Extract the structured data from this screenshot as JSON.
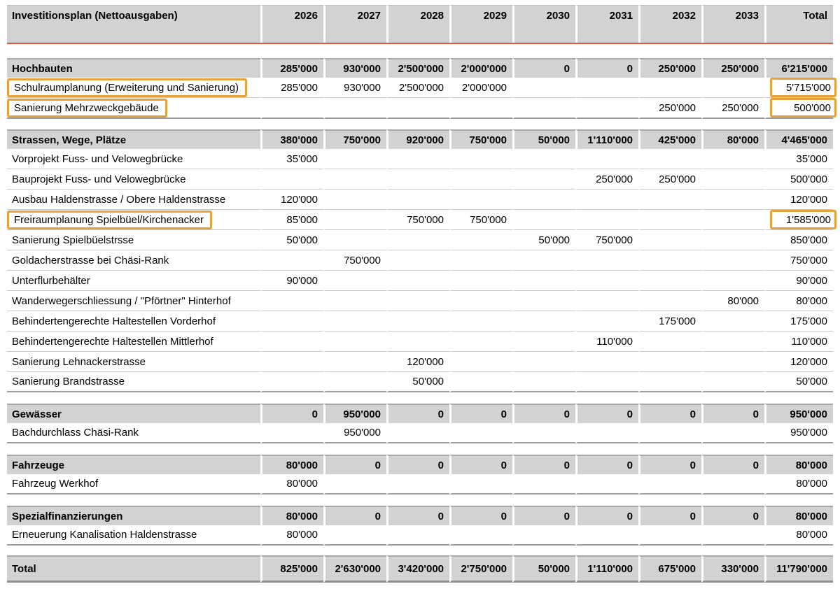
{
  "header": {
    "title": "Investitionsplan (Nettoausgaben)",
    "columns": [
      "2026",
      "2027",
      "2028",
      "2029",
      "2030",
      "2031",
      "2032",
      "2033",
      "Total"
    ]
  },
  "colors": {
    "header_rule_red": "#e8533f",
    "section_fill_gray": "#d2d2d2",
    "annotation_orange": "#e8a23c"
  },
  "sections": [
    {
      "name": "Hochbauten",
      "values": [
        "285'000",
        "930'000",
        "2'500'000",
        "2'000'000",
        "0",
        "0",
        "250'000",
        "250'000",
        "6'215'000"
      ],
      "rows": [
        {
          "label": "Schulraumplanung (Erweiterung und Sanierung)",
          "highlight_label": true,
          "highlight_total": true,
          "values": [
            "285'000",
            "930'000",
            "2'500'000",
            "2'000'000",
            "",
            "",
            "",
            "",
            "5'715'000"
          ]
        },
        {
          "label": "Sanierung Mehrzweckgebäude",
          "highlight_label": true,
          "highlight_total": true,
          "values": [
            "",
            "",
            "",
            "",
            "",
            "",
            "250'000",
            "250'000",
            "500'000"
          ]
        }
      ]
    },
    {
      "name": "Strassen, Wege, Plätze",
      "values": [
        "380'000",
        "750'000",
        "920'000",
        "750'000",
        "50'000",
        "1'110'000",
        "425'000",
        "80'000",
        "4'465'000"
      ],
      "rows": [
        {
          "label": "Vorprojekt Fuss- und Velowegbrücke",
          "values": [
            "35'000",
            "",
            "",
            "",
            "",
            "",
            "",
            "",
            "35'000"
          ]
        },
        {
          "label": "Bauprojekt Fuss- und Velowegbrücke",
          "values": [
            "",
            "",
            "",
            "",
            "",
            "250'000",
            "250'000",
            "",
            "500'000"
          ]
        },
        {
          "label": "Ausbau Haldenstrasse / Obere Haldenstrasse",
          "values": [
            "120'000",
            "",
            "",
            "",
            "",
            "",
            "",
            "",
            "120'000"
          ]
        },
        {
          "label": "Freiraumplanung Spielbüel/Kirchenacker",
          "highlight_label": true,
          "highlight_total": true,
          "values": [
            "85'000",
            "",
            "750'000",
            "750'000",
            "",
            "",
            "",
            "",
            "1'585'000"
          ]
        },
        {
          "label": "Sanierung Spielbüelstrsse",
          "values": [
            "50'000",
            "",
            "",
            "",
            "50'000",
            "750'000",
            "",
            "",
            "850'000"
          ]
        },
        {
          "label": "Goldacherstrasse bei Chäsi-Rank",
          "values": [
            "",
            "750'000",
            "",
            "",
            "",
            "",
            "",
            "",
            "750'000"
          ]
        },
        {
          "label": "Unterflurbehälter",
          "values": [
            "90'000",
            "",
            "",
            "",
            "",
            "",
            "",
            "",
            "90'000"
          ]
        },
        {
          "label": "Wanderwegerschliessung / \"Pförtner\" Hinterhof",
          "values": [
            "",
            "",
            "",
            "",
            "",
            "",
            "",
            "80'000",
            "80'000"
          ]
        },
        {
          "label": "Behindertengerechte Haltestellen Vorderhof",
          "values": [
            "",
            "",
            "",
            "",
            "",
            "",
            "175'000",
            "",
            "175'000"
          ]
        },
        {
          "label": "Behindertengerechte Haltestellen Mittlerhof",
          "values": [
            "",
            "",
            "",
            "",
            "",
            "110'000",
            "",
            "",
            "110'000"
          ]
        },
        {
          "label": "Sanierung Lehnackerstrasse",
          "values": [
            "",
            "",
            "120'000",
            "",
            "",
            "",
            "",
            "",
            "120'000"
          ]
        },
        {
          "label": "Sanierung Brandstrasse",
          "values": [
            "",
            "",
            "50'000",
            "",
            "",
            "",
            "",
            "",
            "50'000"
          ]
        }
      ]
    },
    {
      "name": "Gewässer",
      "values": [
        "0",
        "950'000",
        "0",
        "0",
        "0",
        "0",
        "0",
        "0",
        "950'000"
      ],
      "rows": [
        {
          "label": "Bachdurchlass Chäsi-Rank",
          "values": [
            "",
            "950'000",
            "",
            "",
            "",
            "",
            "",
            "",
            "950'000"
          ]
        }
      ]
    },
    {
      "name": "Fahrzeuge",
      "values": [
        "80'000",
        "0",
        "0",
        "0",
        "0",
        "0",
        "0",
        "0",
        "80'000"
      ],
      "rows": [
        {
          "label": "Fahrzeug Werkhof",
          "values": [
            "80'000",
            "",
            "",
            "",
            "",
            "",
            "",
            "",
            "80'000"
          ]
        }
      ]
    },
    {
      "name": "Spezialfinanzierungen",
      "values": [
        "80'000",
        "0",
        "0",
        "0",
        "0",
        "0",
        "0",
        "0",
        "80'000"
      ],
      "rows": [
        {
          "label": "Erneuerung Kanalisation Haldenstrasse",
          "values": [
            "80'000",
            "",
            "",
            "",
            "",
            "",
            "",
            "",
            "80'000"
          ]
        }
      ]
    }
  ],
  "total": {
    "label": "Total",
    "values": [
      "825'000",
      "2'630'000",
      "3'420'000",
      "2'750'000",
      "50'000",
      "1'110'000",
      "675'000",
      "330'000",
      "11'790'000"
    ]
  }
}
